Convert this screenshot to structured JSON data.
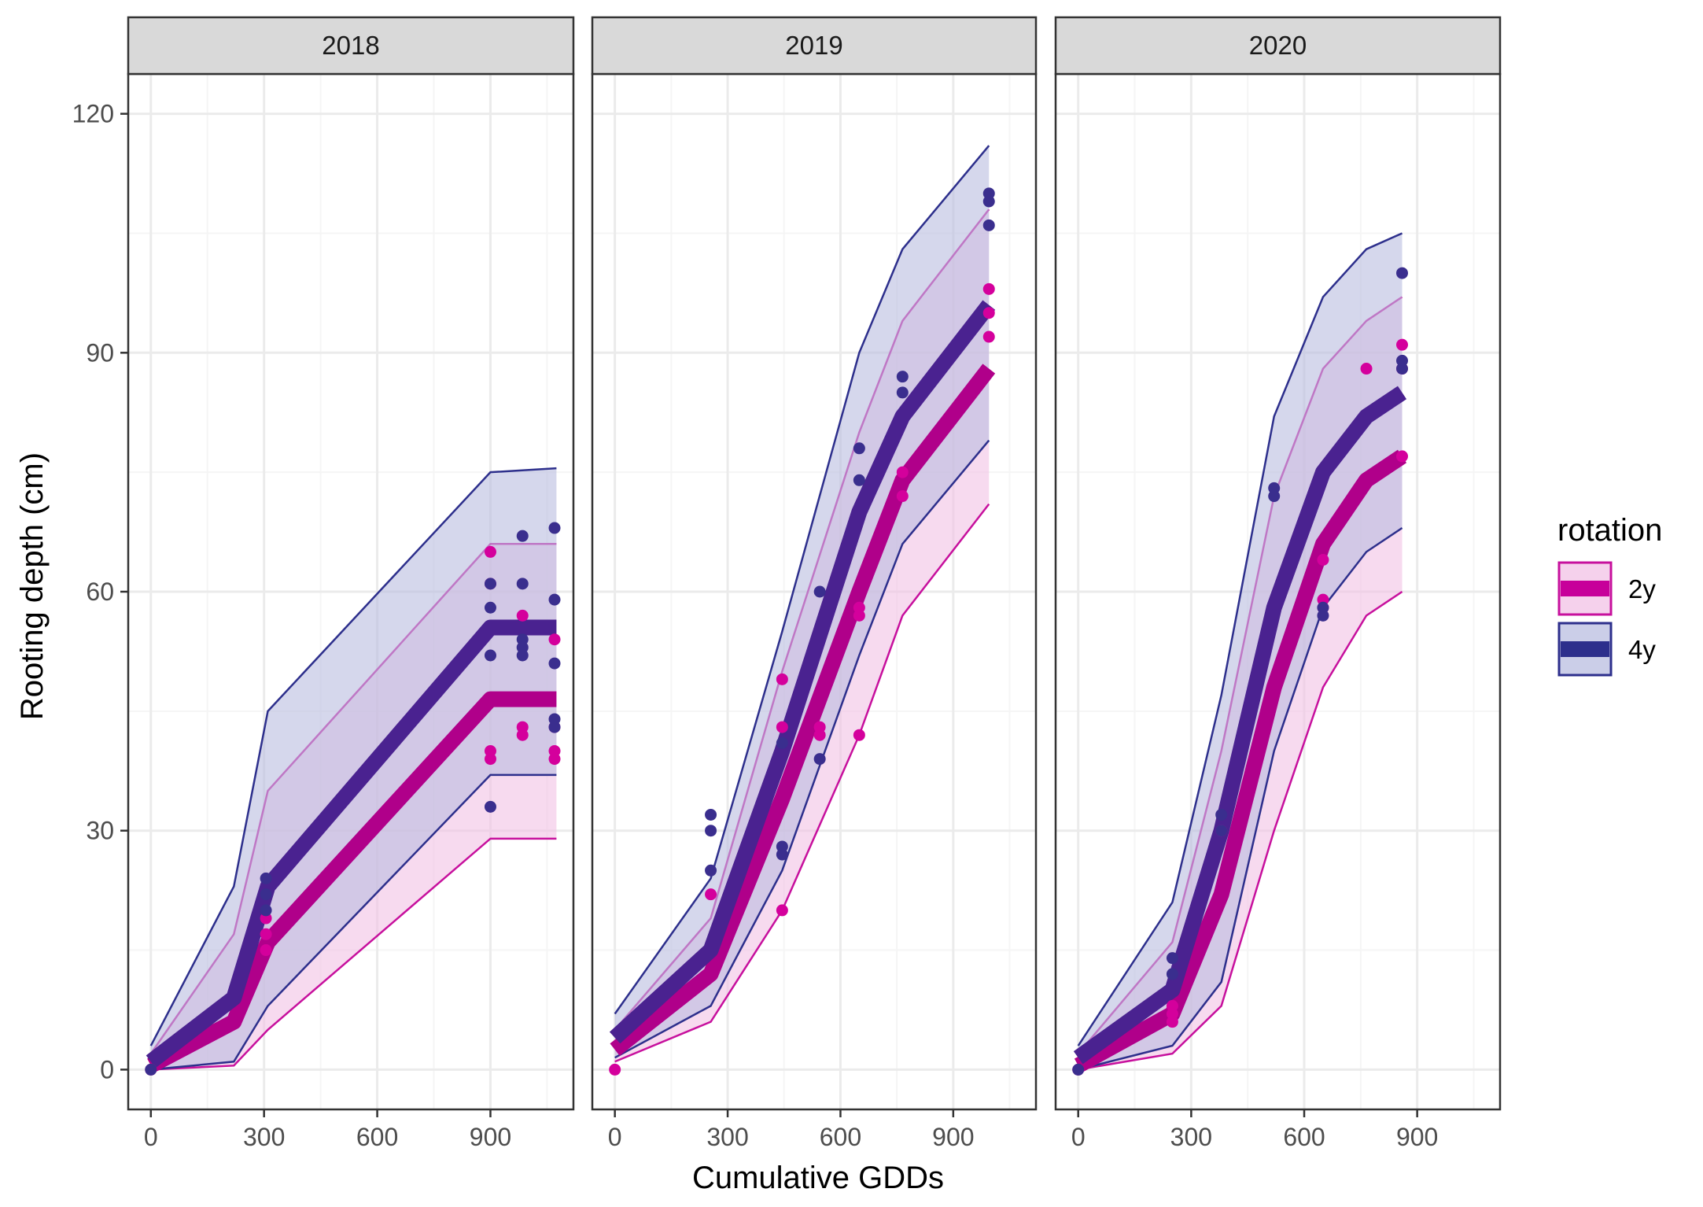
{
  "chart_data": {
    "type": "line",
    "facet_variable": "year",
    "xlabel": "Cumulative GDDs",
    "ylabel": "Rooting depth (cm)",
    "xlim": [
      -60,
      1120
    ],
    "ylim": [
      -5,
      125
    ],
    "x_ticks": [
      0,
      300,
      600,
      900
    ],
    "y_ticks": [
      0,
      30,
      60,
      90,
      120
    ],
    "grid": true,
    "legend": {
      "title": "rotation",
      "position": "right",
      "entries": [
        {
          "label": "2y",
          "color": "#c7009a"
        },
        {
          "label": "4y",
          "color": "#2d2f8c"
        }
      ]
    },
    "colors": {
      "2y_line": "#b0008a",
      "2y_band_edge": "#c7109d",
      "2y_fill": "#f2c2e5",
      "2y_point": "#d4009c",
      "4y_line": "#4a2290",
      "4y_band_edge": "#2d2f8c",
      "4y_fill": "#b9bde0",
      "4y_point": "#3a2e8e",
      "strip_bg": "#d9d9d9",
      "grid_major": "#ebebeb",
      "grid_minor": "#f5f5f5"
    },
    "facets": [
      {
        "label": "2018",
        "series": [
          {
            "name": "2y",
            "x": [
              0,
              220,
              310,
              900,
              1075
            ],
            "y": [
              0.5,
              6,
              16,
              46.5,
              46.5
            ],
            "lower": [
              0,
              0.5,
              5,
              29,
              29
            ],
            "upper": [
              2,
              17,
              35,
              66,
              66
            ],
            "points": [
              [
                0,
                0
              ],
              [
                305,
                15
              ],
              [
                305,
                17
              ],
              [
                305,
                19
              ],
              [
                900,
                65
              ],
              [
                900,
                61
              ],
              [
                900,
                40
              ],
              [
                900,
                39
              ],
              [
                985,
                57
              ],
              [
                985,
                43
              ],
              [
                985,
                42
              ],
              [
                1070,
                54
              ],
              [
                1070,
                43
              ],
              [
                1070,
                40
              ],
              [
                1070,
                39
              ]
            ]
          },
          {
            "name": "4y",
            "x": [
              0,
              220,
              310,
              900,
              1075
            ],
            "y": [
              1,
              9,
              23,
              55.5,
              55.5
            ],
            "lower": [
              0,
              1,
              8,
              37,
              37
            ],
            "upper": [
              3,
              23,
              45,
              75,
              75.5
            ],
            "points": [
              [
                0,
                0
              ],
              [
                305,
                24
              ],
              [
                305,
                22
              ],
              [
                305,
                20
              ],
              [
                900,
                61
              ],
              [
                900,
                58
              ],
              [
                900,
                52
              ],
              [
                900,
                33
              ],
              [
                985,
                67
              ],
              [
                985,
                61
              ],
              [
                985,
                54
              ],
              [
                985,
                53
              ],
              [
                985,
                52
              ],
              [
                1070,
                68
              ],
              [
                1070,
                59
              ],
              [
                1070,
                51
              ],
              [
                1070,
                44
              ],
              [
                1070,
                43
              ]
            ]
          }
        ]
      },
      {
        "label": "2019",
        "series": [
          {
            "name": "2y",
            "x": [
              0,
              255,
              445,
              650,
              765,
              995
            ],
            "y": [
              2.5,
              12,
              34,
              60,
              74,
              88
            ],
            "lower": [
              1,
              6,
              20,
              42,
              57,
              71
            ],
            "upper": [
              5,
              19,
              50,
              80,
              94,
              108
            ],
            "points": [
              [
                0,
                0
              ],
              [
                255,
                22
              ],
              [
                445,
                49
              ],
              [
                445,
                43
              ],
              [
                445,
                20
              ],
              [
                545,
                43
              ],
              [
                545,
                42
              ],
              [
                650,
                42
              ],
              [
                650,
                58
              ],
              [
                650,
                57
              ],
              [
                765,
                75
              ],
              [
                765,
                72
              ],
              [
                995,
                98
              ],
              [
                995,
                95
              ],
              [
                995,
                92
              ]
            ]
          },
          {
            "name": "4y",
            "x": [
              0,
              255,
              445,
              650,
              765,
              995
            ],
            "y": [
              4,
              15,
              40,
              70,
              82,
              96
            ],
            "lower": [
              1.5,
              8,
              25,
              52,
              66,
              79
            ],
            "upper": [
              7,
              24,
              55,
              90,
              103,
              116
            ],
            "points": [
              [
                255,
                32
              ],
              [
                255,
                30
              ],
              [
                255,
                25
              ],
              [
                445,
                41
              ],
              [
                445,
                28
              ],
              [
                445,
                27
              ],
              [
                545,
                60
              ],
              [
                545,
                39
              ],
              [
                650,
                78
              ],
              [
                650,
                74
              ],
              [
                765,
                87
              ],
              [
                765,
                85
              ],
              [
                995,
                110
              ],
              [
                995,
                109
              ],
              [
                995,
                106
              ]
            ]
          }
        ]
      },
      {
        "label": "2020",
        "series": [
          {
            "name": "2y",
            "x": [
              0,
              250,
              380,
              520,
              650,
              765,
              860
            ],
            "y": [
              0.5,
              7,
              22,
              48,
              66,
              74,
              77
            ],
            "lower": [
              0,
              2,
              8,
              30,
              48,
              57,
              60
            ],
            "upper": [
              2,
              16,
              40,
              72,
              88,
              94,
              97
            ],
            "points": [
              [
                0,
                0
              ],
              [
                250,
                6
              ],
              [
                250,
                7
              ],
              [
                250,
                8
              ],
              [
                380,
                30
              ],
              [
                650,
                64
              ],
              [
                650,
                59
              ],
              [
                650,
                58
              ],
              [
                765,
                88
              ],
              [
                860,
                91
              ],
              [
                860,
                88
              ],
              [
                860,
                77
              ]
            ]
          },
          {
            "name": "4y",
            "x": [
              0,
              250,
              380,
              520,
              650,
              765,
              860
            ],
            "y": [
              1.5,
              10,
              30,
              58,
              75,
              82,
              85
            ],
            "lower": [
              0,
              3,
              11,
              40,
              58,
              65,
              68
            ],
            "upper": [
              3,
              21,
              47,
              82,
              97,
              103,
              105
            ],
            "points": [
              [
                0,
                0
              ],
              [
                250,
                14
              ],
              [
                250,
                12
              ],
              [
                380,
                32
              ],
              [
                380,
                30
              ],
              [
                520,
                73
              ],
              [
                520,
                72
              ],
              [
                650,
                58
              ],
              [
                650,
                57
              ],
              [
                860,
                100
              ],
              [
                860,
                89
              ],
              [
                860,
                88
              ]
            ]
          }
        ]
      }
    ]
  }
}
